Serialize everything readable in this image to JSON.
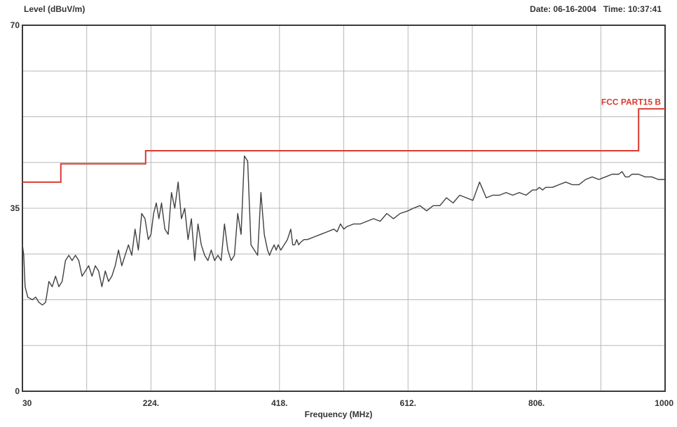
{
  "header": {
    "ylabel": "Level (dBuV/m)",
    "date_label": "Date:",
    "date": "06-16-2004",
    "time_label": "Time:",
    "time": "10:37:41"
  },
  "chart_data": {
    "type": "line",
    "xlabel": "Frequency (MHz)",
    "ylabel": "Level (dBuV/m)",
    "xlim": [
      30,
      1000
    ],
    "ylim": [
      0,
      70
    ],
    "x_ticks": [
      "30",
      "224.",
      "418.",
      "612.",
      "806.",
      "1000"
    ],
    "y_ticks": [
      "0",
      "35",
      "70"
    ],
    "grid": true,
    "limit_line": {
      "name": "FCC PART15 B",
      "color": "#d93a2f",
      "x": [
        30,
        88,
        88,
        216,
        216,
        960,
        960,
        1000
      ],
      "y": [
        40,
        40,
        43.5,
        43.5,
        46,
        46,
        54,
        54
      ]
    },
    "series": [
      {
        "color": "#404040",
        "x": [
          30,
          32,
          34,
          38,
          45,
          50,
          55,
          60,
          65,
          70,
          75,
          80,
          85,
          90,
          95,
          100,
          105,
          110,
          115,
          120,
          125,
          130,
          135,
          140,
          145,
          150,
          155,
          160,
          165,
          170,
          175,
          180,
          185,
          190,
          195,
          200,
          205,
          210,
          215,
          220,
          224,
          228,
          232,
          236,
          240,
          245,
          250,
          255,
          260,
          265,
          270,
          275,
          280,
          285,
          290,
          295,
          300,
          305,
          310,
          315,
          320,
          325,
          330,
          335,
          340,
          345,
          350,
          355,
          360,
          365,
          370,
          375,
          380,
          385,
          390,
          395,
          400,
          403,
          406,
          410,
          413,
          416,
          420,
          425,
          430,
          435,
          438,
          441,
          444,
          447,
          450,
          455,
          460,
          470,
          480,
          490,
          500,
          505,
          510,
          515,
          520,
          530,
          540,
          550,
          560,
          570,
          580,
          590,
          600,
          612,
          620,
          630,
          640,
          650,
          660,
          670,
          680,
          690,
          700,
          710,
          720,
          730,
          740,
          750,
          760,
          770,
          780,
          790,
          800,
          806,
          810,
          815,
          820,
          830,
          840,
          850,
          860,
          870,
          880,
          890,
          900,
          910,
          920,
          930,
          935,
          940,
          945,
          950,
          960,
          970,
          980,
          990,
          1000
        ],
        "y": [
          28,
          26,
          20,
          18,
          17.5,
          18,
          17,
          16.5,
          17,
          21,
          20,
          22,
          20,
          21,
          25,
          26,
          25,
          26,
          25,
          22,
          23,
          24,
          22,
          24,
          23,
          20,
          23,
          21,
          22,
          24,
          27,
          24,
          26,
          28,
          26,
          31,
          27,
          34,
          33,
          29,
          30,
          34,
          36,
          33,
          36,
          31,
          30,
          38,
          35,
          40,
          33,
          35,
          29,
          33,
          25,
          32,
          28,
          26,
          25,
          27,
          25,
          26,
          25,
          32,
          27,
          25,
          26,
          34,
          30,
          45,
          44,
          28,
          27,
          26,
          38,
          30,
          27,
          26,
          27,
          28,
          27,
          28,
          27,
          28,
          29,
          31,
          28,
          28,
          29,
          28,
          28.5,
          29,
          29,
          29.5,
          30,
          30.5,
          31,
          30.5,
          32,
          31,
          31.5,
          32,
          32,
          32.5,
          33,
          32.5,
          34,
          33,
          34,
          34.5,
          35,
          35.5,
          34.5,
          35.5,
          35.5,
          37,
          36,
          37.5,
          37,
          36.5,
          40,
          37,
          37.5,
          37.5,
          38,
          37.5,
          38,
          37.5,
          38.5,
          38.5,
          39,
          38.5,
          39,
          39,
          39.5,
          40,
          39.5,
          39.5,
          40.5,
          41,
          40.5,
          41,
          41.5,
          41.5,
          42,
          41,
          41,
          41.5,
          41.5,
          41,
          41,
          40.5,
          40.5
        ]
      }
    ]
  }
}
